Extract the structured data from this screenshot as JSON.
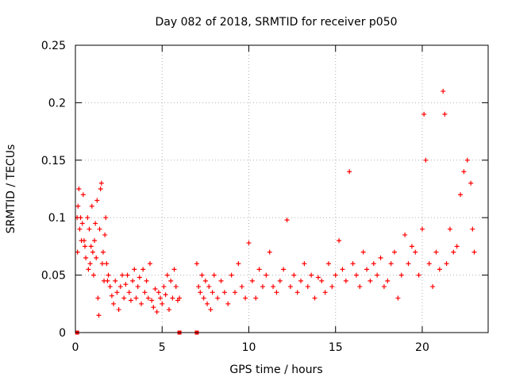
{
  "chart_data": {
    "type": "scatter",
    "title": "Day 082 of 2018, SRMTID for receiver p050",
    "xlabel": "GPS time / hours",
    "ylabel": "SRMTID / TECUs",
    "xlim": [
      0,
      23.8
    ],
    "ylim": [
      0,
      0.25
    ],
    "x_ticks": [
      0,
      5,
      10,
      15,
      20
    ],
    "x_tick_labels": [
      "0",
      "5",
      "10",
      "15",
      "20"
    ],
    "y_ticks": [
      0,
      0.05,
      0.1,
      0.15,
      0.2,
      0.25
    ],
    "y_tick_labels": [
      "0",
      "0.05",
      "0.1",
      "0.15",
      "0.2",
      "0.25"
    ],
    "grid": true,
    "marker": "plus",
    "colors": {
      "series": "#ff0000",
      "grid": "#b0b0b0",
      "axis": "#000000"
    },
    "zero_markers": [
      0.1,
      6.0,
      7.0
    ],
    "series": [
      {
        "name": "SRMTID",
        "description": "dense scatter of 5-minute SRMTID estimates",
        "points": [
          [
            0.1,
            0.1
          ],
          [
            0.12,
            0.07
          ],
          [
            0.15,
            0.11
          ],
          [
            0.2,
            0.125
          ],
          [
            0.25,
            0.09
          ],
          [
            0.3,
            0.1
          ],
          [
            0.35,
            0.08
          ],
          [
            0.4,
            0.095
          ],
          [
            0.45,
            0.12
          ],
          [
            0.5,
            0.08
          ],
          [
            0.55,
            0.075
          ],
          [
            0.6,
            0.065
          ],
          [
            0.7,
            0.1
          ],
          [
            0.75,
            0.055
          ],
          [
            0.8,
            0.09
          ],
          [
            0.85,
            0.06
          ],
          [
            0.9,
            0.075
          ],
          [
            0.95,
            0.11
          ],
          [
            1.0,
            0.07
          ],
          [
            1.05,
            0.05
          ],
          [
            1.1,
            0.08
          ],
          [
            1.15,
            0.095
          ],
          [
            1.2,
            0.065
          ],
          [
            1.25,
            0.115
          ],
          [
            1.3,
            0.03
          ],
          [
            1.35,
            0.015
          ],
          [
            1.4,
            0.09
          ],
          [
            1.45,
            0.125
          ],
          [
            1.5,
            0.13
          ],
          [
            1.55,
            0.06
          ],
          [
            1.6,
            0.07
          ],
          [
            1.65,
            0.045
          ],
          [
            1.7,
            0.085
          ],
          [
            1.75,
            0.1
          ],
          [
            1.8,
            0.06
          ],
          [
            1.85,
            0.045
          ],
          [
            1.9,
            0.05
          ],
          [
            2.0,
            0.04
          ],
          [
            2.1,
            0.032
          ],
          [
            2.2,
            0.025
          ],
          [
            2.3,
            0.045
          ],
          [
            2.4,
            0.035
          ],
          [
            2.5,
            0.02
          ],
          [
            2.6,
            0.04
          ],
          [
            2.7,
            0.05
          ],
          [
            2.8,
            0.03
          ],
          [
            2.9,
            0.042
          ],
          [
            3.0,
            0.05
          ],
          [
            3.1,
            0.035
          ],
          [
            3.2,
            0.028
          ],
          [
            3.3,
            0.045
          ],
          [
            3.4,
            0.055
          ],
          [
            3.5,
            0.03
          ],
          [
            3.6,
            0.04
          ],
          [
            3.7,
            0.048
          ],
          [
            3.8,
            0.025
          ],
          [
            3.9,
            0.055
          ],
          [
            4.0,
            0.035
          ],
          [
            4.1,
            0.045
          ],
          [
            4.2,
            0.03
          ],
          [
            4.3,
            0.06
          ],
          [
            4.4,
            0.028
          ],
          [
            4.5,
            0.022
          ],
          [
            4.6,
            0.038
          ],
          [
            4.7,
            0.018
          ],
          [
            4.8,
            0.035
          ],
          [
            4.9,
            0.03
          ],
          [
            5.0,
            0.025
          ],
          [
            5.1,
            0.04
          ],
          [
            5.2,
            0.033
          ],
          [
            5.3,
            0.05
          ],
          [
            5.4,
            0.02
          ],
          [
            5.5,
            0.045
          ],
          [
            5.6,
            0.03
          ],
          [
            5.7,
            0.055
          ],
          [
            5.8,
            0.04
          ],
          [
            5.9,
            0.028
          ],
          [
            6.0,
            0.03
          ],
          [
            7.0,
            0.06
          ],
          [
            7.1,
            0.04
          ],
          [
            7.2,
            0.035
          ],
          [
            7.3,
            0.05
          ],
          [
            7.4,
            0.03
          ],
          [
            7.5,
            0.045
          ],
          [
            7.6,
            0.025
          ],
          [
            7.7,
            0.04
          ],
          [
            7.8,
            0.02
          ],
          [
            7.9,
            0.035
          ],
          [
            8.0,
            0.05
          ],
          [
            8.2,
            0.03
          ],
          [
            8.4,
            0.045
          ],
          [
            8.6,
            0.035
          ],
          [
            8.8,
            0.025
          ],
          [
            9.0,
            0.05
          ],
          [
            9.2,
            0.035
          ],
          [
            9.4,
            0.06
          ],
          [
            9.6,
            0.04
          ],
          [
            9.8,
            0.03
          ],
          [
            10.0,
            0.078
          ],
          [
            10.2,
            0.045
          ],
          [
            10.4,
            0.03
          ],
          [
            10.6,
            0.055
          ],
          [
            10.8,
            0.04
          ],
          [
            11.0,
            0.05
          ],
          [
            11.2,
            0.07
          ],
          [
            11.4,
            0.04
          ],
          [
            11.6,
            0.035
          ],
          [
            11.8,
            0.045
          ],
          [
            12.0,
            0.055
          ],
          [
            12.2,
            0.098
          ],
          [
            12.4,
            0.04
          ],
          [
            12.6,
            0.05
          ],
          [
            12.8,
            0.035
          ],
          [
            13.0,
            0.045
          ],
          [
            13.2,
            0.06
          ],
          [
            13.4,
            0.04
          ],
          [
            13.6,
            0.05
          ],
          [
            13.8,
            0.03
          ],
          [
            14.0,
            0.048
          ],
          [
            14.2,
            0.045
          ],
          [
            14.4,
            0.035
          ],
          [
            14.6,
            0.06
          ],
          [
            14.8,
            0.04
          ],
          [
            15.0,
            0.05
          ],
          [
            15.2,
            0.08
          ],
          [
            15.4,
            0.055
          ],
          [
            15.6,
            0.045
          ],
          [
            15.8,
            0.14
          ],
          [
            16.0,
            0.06
          ],
          [
            16.2,
            0.05
          ],
          [
            16.4,
            0.04
          ],
          [
            16.6,
            0.07
          ],
          [
            16.8,
            0.055
          ],
          [
            17.0,
            0.045
          ],
          [
            17.2,
            0.06
          ],
          [
            17.4,
            0.05
          ],
          [
            17.6,
            0.065
          ],
          [
            17.8,
            0.04
          ],
          [
            18.0,
            0.045
          ],
          [
            18.2,
            0.06
          ],
          [
            18.4,
            0.07
          ],
          [
            18.6,
            0.03
          ],
          [
            18.8,
            0.05
          ],
          [
            19.0,
            0.085
          ],
          [
            19.2,
            0.06
          ],
          [
            19.4,
            0.075
          ],
          [
            19.6,
            0.07
          ],
          [
            19.8,
            0.05
          ],
          [
            20.0,
            0.09
          ],
          [
            20.1,
            0.19
          ],
          [
            20.2,
            0.15
          ],
          [
            20.4,
            0.06
          ],
          [
            20.6,
            0.04
          ],
          [
            20.8,
            0.07
          ],
          [
            21.0,
            0.055
          ],
          [
            21.2,
            0.21
          ],
          [
            21.3,
            0.19
          ],
          [
            21.4,
            0.06
          ],
          [
            21.6,
            0.09
          ],
          [
            21.8,
            0.07
          ],
          [
            22.0,
            0.075
          ],
          [
            22.2,
            0.12
          ],
          [
            22.4,
            0.14
          ],
          [
            22.6,
            0.15
          ],
          [
            22.8,
            0.13
          ],
          [
            22.9,
            0.09
          ],
          [
            23.0,
            0.07
          ]
        ]
      }
    ]
  }
}
